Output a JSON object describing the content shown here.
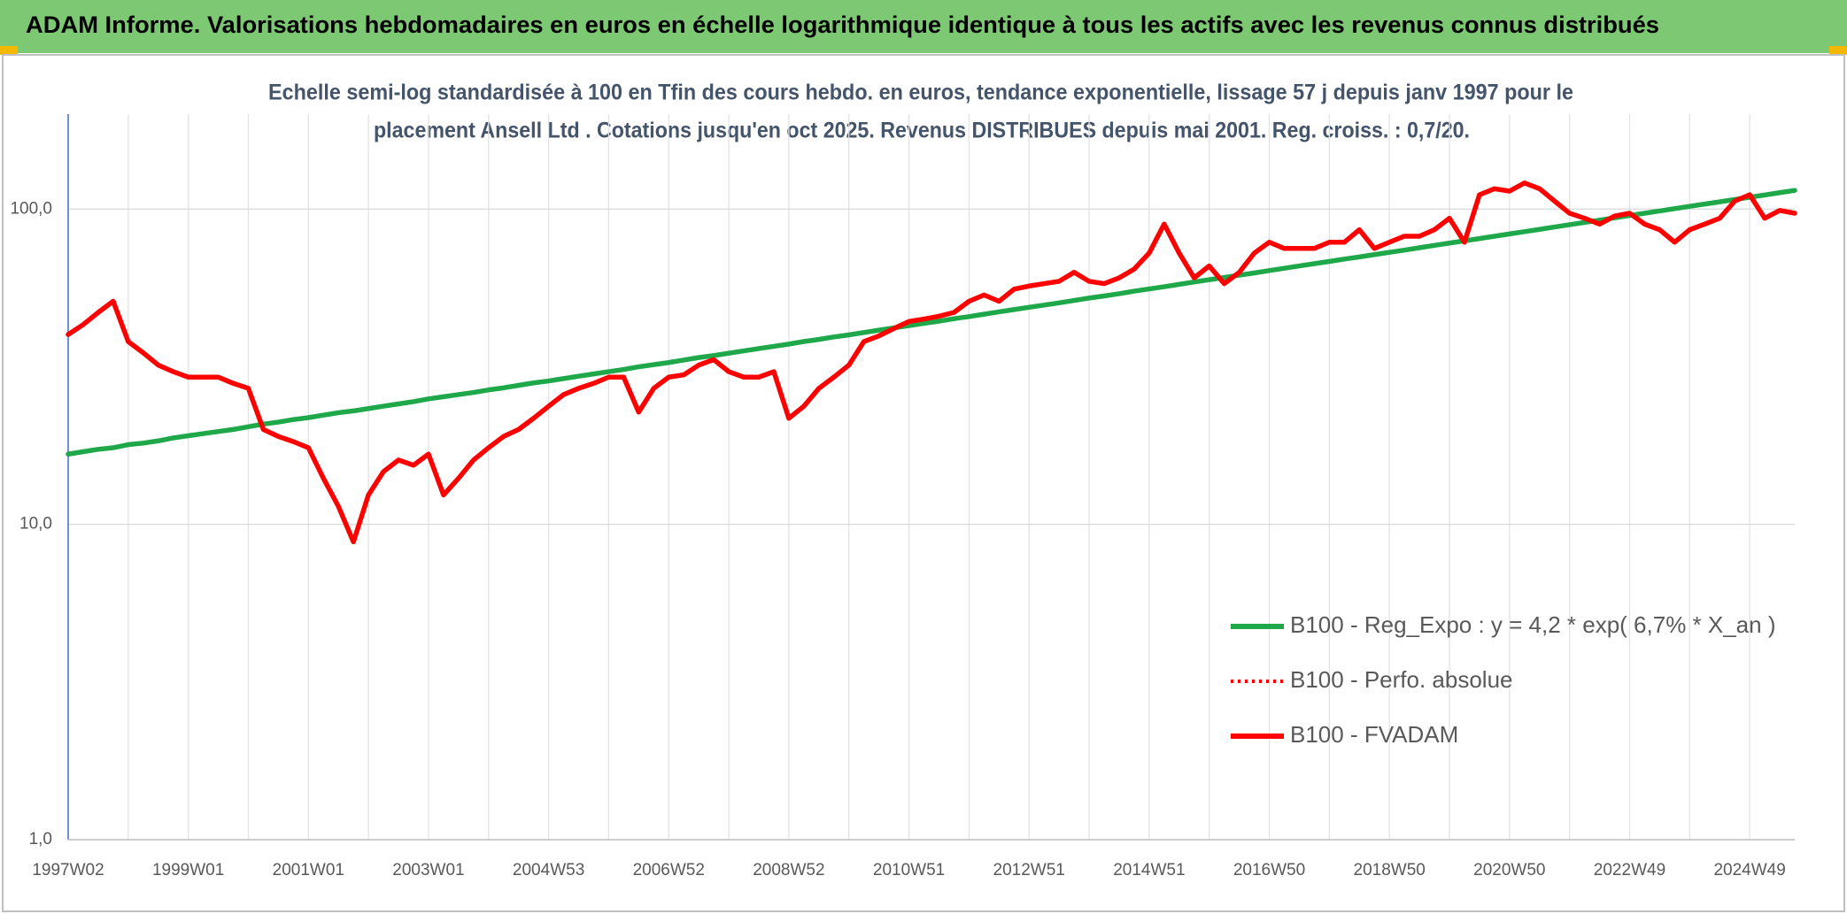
{
  "chart_data": {
    "type": "line",
    "title": "ADAM Informe. Valorisations hebdomadaires en euros en échelle logarithmique identique à tous les actifs avec les revenus connus distribués",
    "subtitle": [
      "Echelle semi-log standardisée à 100 en Tfin des cours hebdo. en euros, tendance exponentielle, lissage 57 j depuis janv 1997 pour le",
      "placement Ansell Ltd . Cotations jusqu'en oct 2025. Revenus DISTRIBUES depuis mai 2001. Reg. croiss. : 0,7/20."
    ],
    "log_scale": true,
    "grid": true,
    "legend": "right",
    "ylim": [
      1,
      200
    ],
    "yticks": [
      {
        "value": 1,
        "label": "1,0"
      },
      {
        "value": 10,
        "label": "10,0"
      },
      {
        "value": 100,
        "label": "100,0"
      }
    ],
    "categories": [
      "1997W02",
      null,
      null,
      null,
      null,
      null,
      null,
      null,
      "1999W01",
      null,
      null,
      null,
      null,
      null,
      null,
      null,
      "2001W01",
      null,
      null,
      null,
      null,
      null,
      null,
      null,
      "2003W01",
      null,
      null,
      null,
      null,
      null,
      null,
      null,
      "2004W53",
      null,
      null,
      null,
      null,
      null,
      null,
      null,
      "2006W52",
      null,
      null,
      null,
      null,
      null,
      null,
      null,
      "2008W52",
      null,
      null,
      null,
      null,
      null,
      null,
      null,
      "2010W51",
      null,
      null,
      null,
      null,
      null,
      null,
      null,
      "2012W51",
      null,
      null,
      null,
      null,
      null,
      null,
      null,
      "2014W51",
      null,
      null,
      null,
      null,
      null,
      null,
      null,
      "2016W50",
      null,
      null,
      null,
      null,
      null,
      null,
      null,
      "2018W50",
      null,
      null,
      null,
      null,
      null,
      null,
      null,
      "2020W50",
      null,
      null,
      null,
      null,
      null,
      null,
      null,
      "2022W49",
      null,
      null,
      null,
      null,
      null,
      null,
      null,
      "2024W49",
      null,
      null,
      null
    ],
    "series": [
      {
        "name": "B100 - Reg_Expo : y = 4,2 * exp( 6,7% *  X_an )",
        "color": "#1fa84a",
        "style": "solid",
        "values": [
          16.7,
          17.0,
          17.3,
          17.5,
          17.9,
          18.1,
          18.4,
          18.8,
          19.1,
          19.4,
          19.7,
          20.0,
          20.4,
          20.8,
          21.1,
          21.5,
          21.8,
          22.2,
          22.6,
          22.9,
          23.3,
          23.7,
          24.1,
          24.5,
          25.0,
          25.4,
          25.8,
          26.2,
          26.7,
          27.1,
          27.6,
          28.1,
          28.5,
          29.0,
          29.5,
          30.0,
          30.5,
          31.0,
          31.6,
          32.1,
          32.6,
          33.2,
          33.8,
          34.3,
          34.9,
          35.5,
          36.1,
          36.7,
          37.3,
          38.0,
          38.6,
          39.3,
          39.9,
          40.6,
          41.3,
          42.0,
          42.7,
          43.4,
          44.1,
          44.9,
          45.6,
          46.4,
          47.2,
          48.0,
          48.8,
          49.6,
          50.4,
          51.3,
          52.2,
          53.0,
          53.9,
          54.9,
          55.8,
          56.7,
          57.7,
          58.7,
          59.7,
          60.7,
          61.7,
          62.7,
          63.8,
          64.9,
          66.0,
          67.1,
          68.2,
          69.4,
          70.5,
          71.7,
          72.9,
          74.1,
          75.4,
          76.7,
          78.0,
          79.3,
          80.6,
          82.0,
          83.4,
          84.8,
          86.2,
          87.7,
          89.2,
          90.7,
          92.2,
          93.8,
          95.4,
          97.0,
          98.6,
          100.3,
          102.0,
          103.7,
          105.4,
          107.2,
          109.0,
          110.8,
          112.7,
          114.6
        ]
      },
      {
        "name": "B100 - Perfo. absolue",
        "color": "#ff0000",
        "style": "dotted",
        "values": [
          40,
          43,
          47,
          51,
          38,
          35,
          32,
          30.5,
          29.3,
          29.3,
          29.3,
          28,
          27,
          20,
          19,
          18.3,
          17.5,
          14,
          11.4,
          8.8,
          12.4,
          14.7,
          16,
          15.4,
          16.7,
          12.4,
          14,
          16,
          17.5,
          19,
          20,
          21.7,
          23.7,
          25.8,
          27,
          28,
          29.3,
          29.3,
          22.7,
          27,
          29.3,
          29.8,
          32,
          33.3,
          30.5,
          29.3,
          29.3,
          30.5,
          21.7,
          23.7,
          27,
          29.3,
          32,
          38,
          39.6,
          41.8,
          44,
          44.8,
          45.7,
          47,
          51,
          53.4,
          51,
          55.7,
          57,
          58,
          59,
          63,
          59,
          58,
          60.5,
          64.5,
          72.5,
          89.6,
          72.5,
          60.5,
          66,
          58,
          63,
          72.5,
          78.5,
          75,
          75,
          75,
          78.5,
          78.5,
          86,
          75,
          78.5,
          82,
          82,
          86,
          93.5,
          78.5,
          111,
          116,
          114,
          121,
          116,
          106,
          97,
          93.5,
          89.6,
          95,
          97,
          89.6,
          86,
          78.5,
          86,
          89.6,
          93.5,
          106,
          111,
          93.5,
          99,
          97
        ]
      },
      {
        "name": "B100 - FVADAM",
        "color": "#ff0000",
        "style": "solid",
        "values": [
          40,
          43,
          47,
          51,
          38,
          35,
          32,
          30.5,
          29.3,
          29.3,
          29.3,
          28,
          27,
          20,
          19,
          18.3,
          17.5,
          14,
          11.4,
          8.8,
          12.4,
          14.7,
          16,
          15.4,
          16.7,
          12.4,
          14,
          16,
          17.5,
          19,
          20,
          21.7,
          23.7,
          25.8,
          27,
          28,
          29.3,
          29.3,
          22.7,
          27,
          29.3,
          29.8,
          32,
          33.3,
          30.5,
          29.3,
          29.3,
          30.5,
          21.7,
          23.7,
          27,
          29.3,
          32,
          38,
          39.6,
          41.8,
          44,
          44.8,
          45.7,
          47,
          51,
          53.4,
          51,
          55.7,
          57,
          58,
          59,
          63,
          59,
          58,
          60.5,
          64.5,
          72.5,
          89.6,
          72.5,
          60.5,
          66,
          58,
          63,
          72.5,
          78.5,
          75,
          75,
          75,
          78.5,
          78.5,
          86,
          75,
          78.5,
          82,
          82,
          86,
          93.5,
          78.5,
          111,
          116,
          114,
          121,
          116,
          106,
          97,
          93.5,
          89.6,
          95,
          97,
          89.6,
          86,
          78.5,
          86,
          89.6,
          93.5,
          106,
          111,
          93.5,
          99,
          97
        ]
      }
    ]
  }
}
